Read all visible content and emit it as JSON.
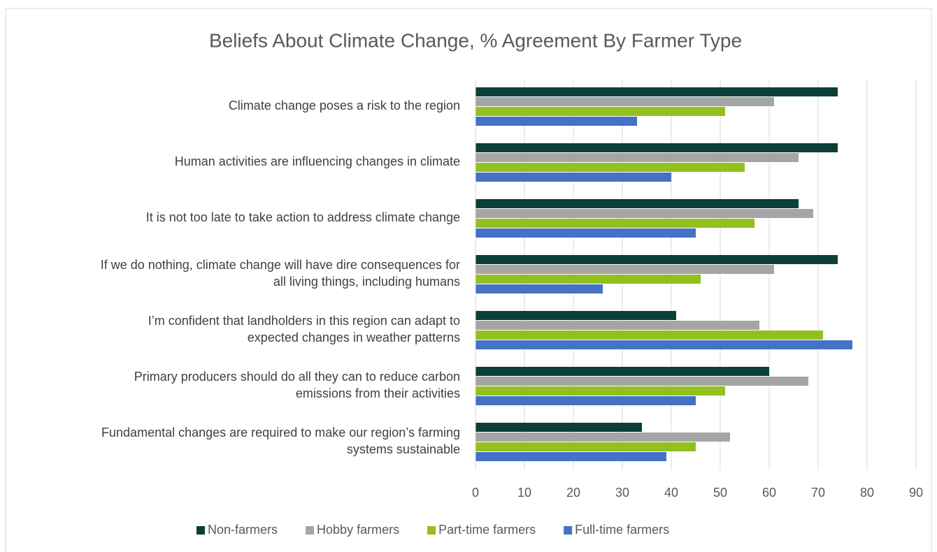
{
  "chart_data": {
    "type": "hbar",
    "title": "Beliefs About Climate Change, % Agreement By Farmer Type",
    "categories": [
      "Climate change poses a risk to the region",
      "Human activities are influencing changes in climate",
      "It is not too late to take action to address climate change",
      "If we do nothing, climate change will have dire consequences for\nall living things, including humans",
      "I’m confident that landholders in this region can adapt to\nexpected changes in weather patterns",
      "Primary producers should do all they can to reduce carbon\nemissions from their activities",
      "Fundamental changes are required to make our region’s farming\nsystems sustainable"
    ],
    "series": [
      {
        "name": "Non-farmers",
        "color": "#0b3f37",
        "values": [
          74,
          74,
          66,
          74,
          41,
          60,
          34
        ]
      },
      {
        "name": "Hobby farmers",
        "color": "#a5a5a5",
        "values": [
          61,
          66,
          69,
          61,
          58,
          68,
          52
        ]
      },
      {
        "name": "Part-time farmers",
        "color": "#92c01f",
        "values": [
          51,
          55,
          57,
          46,
          71,
          51,
          45
        ]
      },
      {
        "name": "Full-time farmers",
        "color": "#4472c4",
        "values": [
          33,
          40,
          45,
          26,
          77,
          45,
          39
        ]
      }
    ],
    "xlim": [
      0,
      90
    ],
    "xticks": [
      0,
      10,
      20,
      30,
      40,
      50,
      60,
      70,
      80,
      90
    ],
    "grid": true,
    "legend": "bottom"
  }
}
